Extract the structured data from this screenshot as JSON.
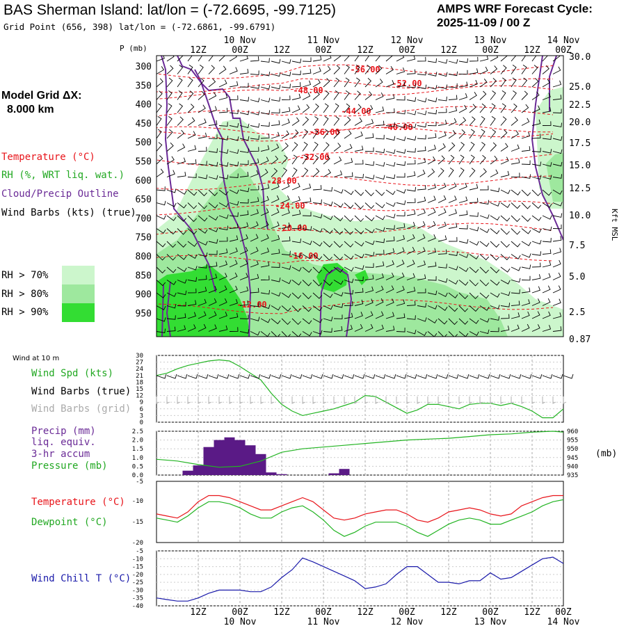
{
  "header": {
    "station_title": "BAS Sherman Island:  lat/lon = (-72.6695, -99.7125)",
    "grid_point": "Grid Point (656, 398) lat/lon = (-72.6861, -99.6791)",
    "cycle_title": "AMPS WRF Forecast Cycle:",
    "cycle_time": "2025-11-09 / 00  Z"
  },
  "left_legend": {
    "model_grid_label": "Model Grid ΔX:",
    "model_grid_value": "8.000 km",
    "temperature": "Temperature (°C)",
    "rh": "RH (%, WRT liq. wat.)",
    "cloud": "Cloud/Precip Outline",
    "wind_barbs": "Wind Barbs (kts) (true)",
    "rh70": "RH > 70%",
    "rh80": "RH > 80%",
    "rh90": "RH > 90%",
    "wind10m": "Wind at 10 m",
    "wind_spd": "Wind Spd (kts)",
    "barbs_true": "Wind Barbs (true)",
    "barbs_grid": "Wind Barbs (grid)",
    "precip1": "Precip (mm)",
    "precip2": "liq. equiv.",
    "precip3": "3-hr accum",
    "pressure": "Pressure (mb)",
    "temp_panel": "Temperature (°C)",
    "dew_panel": "Dewpoint (°C)",
    "windchill": "Wind Chill T (°C)"
  },
  "colors": {
    "temperature": "#e8141a",
    "rh70": "#ccf6cc",
    "rh80": "#9ee89e",
    "rh90": "#33dd33",
    "cloud": "#6a2a96",
    "windspd": "#22b422",
    "barbs_grid": "#aaaaaa",
    "precip": "#5a1a86",
    "pressure": "#22b422",
    "windchill": "#1a1aaa"
  },
  "chart_data": [
    {
      "type": "time-height cross section",
      "title": "Temperature, RH, Cloud/Precip outline and wind barbs",
      "y_left_label": "P (mb)",
      "y_left_ticks": [
        "300",
        "350",
        "400",
        "450",
        "500",
        "550",
        "600",
        "650",
        "700",
        "750",
        "800",
        "850",
        "900",
        "950"
      ],
      "y_right_label": "Kft MSL",
      "y_right_ticks": [
        "30.0",
        "25.0",
        "22.5",
        "20.0",
        "17.5",
        "15.0",
        "12.5",
        "10.0",
        "7.5",
        "5.0",
        "2.5",
        "0.87"
      ],
      "x_top_hours": [
        "12Z",
        "00Z",
        "12Z",
        "00Z",
        "12Z",
        "00Z",
        "12Z",
        "00Z",
        "12Z",
        "00Z"
      ],
      "x_top_days": [
        "10 Nov",
        "11 Nov",
        "12 Nov",
        "13 Nov",
        "14 Nov"
      ],
      "temperature_contours": [
        "-56.00",
        "-52.00",
        "-48.00",
        "-44.00",
        "-40.00",
        "-36.00",
        "-32.00",
        "-28.00",
        "-24.00",
        "-20.00",
        "-16.00",
        "-12.00"
      ]
    },
    {
      "type": "line",
      "title": "Wind at 10 m",
      "series_name": "Wind Spd (kts)",
      "y_ticks": [
        "30",
        "27",
        "24",
        "21",
        "18",
        "15",
        "12",
        "9",
        "6",
        "3",
        "0"
      ],
      "ylim": [
        0,
        30
      ],
      "x_hours": [
        0,
        3,
        6,
        9,
        12,
        15,
        18,
        21,
        24,
        27,
        30,
        33,
        36,
        39,
        42,
        45,
        48,
        51,
        54,
        57,
        60,
        63,
        66,
        69,
        72,
        75,
        78,
        81,
        84,
        87,
        90,
        93,
        96,
        99,
        102,
        105,
        108,
        111,
        114,
        117
      ],
      "values": [
        21,
        22,
        24,
        25.5,
        26.5,
        27.5,
        28,
        27.5,
        25,
        22,
        19,
        13,
        8,
        5,
        3,
        4,
        5,
        6,
        7.5,
        9,
        12,
        11.5,
        9,
        6.5,
        4,
        5.5,
        8,
        8,
        7,
        6,
        8,
        8.5,
        8.5,
        7.5,
        8.5,
        7,
        5,
        2,
        2,
        6
      ]
    },
    {
      "type": "bar+line",
      "title": "Precip / Pressure",
      "precip_name": "Precip (mm)",
      "precip_y_ticks": [
        "2.5",
        "2.0",
        "1.5",
        "1.0",
        "0.5",
        "0.0"
      ],
      "precip_ylim": [
        0,
        2.5
      ],
      "precip_x_hours": [
        9,
        12,
        15,
        18,
        21,
        24,
        27,
        30,
        33,
        36,
        39,
        42,
        45,
        48,
        51,
        54
      ],
      "precip_values": [
        0.25,
        0.55,
        1.6,
        2.0,
        2.15,
        2.0,
        1.7,
        1.2,
        0.15,
        0.05,
        0,
        0,
        0,
        0,
        0.1,
        0.35
      ],
      "pressure_name": "Pressure (mb)",
      "pressure_y_ticks": [
        "960",
        "955",
        "950",
        "945",
        "940",
        "935"
      ],
      "pressure_ylim": [
        935,
        960
      ],
      "pressure_x_hours": [
        0,
        6,
        12,
        18,
        24,
        30,
        36,
        42,
        48,
        54,
        60,
        66,
        72,
        78,
        84,
        90,
        96,
        102,
        108,
        114,
        117
      ],
      "pressure_values": [
        944,
        943,
        941,
        939.5,
        940,
        943,
        948,
        950,
        951,
        952,
        953,
        954,
        955,
        955.5,
        956,
        957,
        958,
        958.5,
        959.5,
        960,
        959.5
      ],
      "pressure_unit": "(mb)"
    },
    {
      "type": "line",
      "title": "Temperature / Dewpoint",
      "y_ticks": [
        "-5",
        "-10",
        "-15",
        "-20"
      ],
      "ylim": [
        -20,
        -5
      ],
      "x_hours": [
        0,
        3,
        6,
        9,
        12,
        15,
        18,
        21,
        24,
        27,
        30,
        33,
        36,
        39,
        42,
        45,
        48,
        51,
        54,
        57,
        60,
        63,
        66,
        69,
        72,
        75,
        78,
        81,
        84,
        87,
        90,
        93,
        96,
        99,
        102,
        105,
        108,
        111,
        114,
        117
      ],
      "series": [
        {
          "name": "Temperature",
          "values": [
            -13,
            -13.5,
            -14,
            -12.5,
            -10,
            -8.5,
            -8.5,
            -9,
            -10,
            -11,
            -12,
            -12,
            -11,
            -10,
            -9,
            -10,
            -12,
            -14,
            -14.5,
            -14,
            -13,
            -12.5,
            -12,
            -12,
            -13,
            -14.5,
            -15,
            -14,
            -12.5,
            -12,
            -11.5,
            -12,
            -13,
            -13.5,
            -13,
            -11,
            -10,
            -9,
            -8.5,
            -8.5
          ]
        },
        {
          "name": "Dewpoint",
          "values": [
            -14,
            -14.5,
            -15,
            -13.5,
            -11.5,
            -10,
            -10,
            -10.5,
            -11.5,
            -13,
            -14,
            -14,
            -12.5,
            -11.5,
            -11,
            -12.5,
            -14.5,
            -17,
            -18.5,
            -17.5,
            -16,
            -15,
            -15,
            -15,
            -16,
            -17.5,
            -18.5,
            -17,
            -15.5,
            -14.5,
            -14,
            -14.5,
            -15.5,
            -15.5,
            -14.5,
            -13.5,
            -12.5,
            -11,
            -10,
            -9.5
          ]
        }
      ]
    },
    {
      "type": "line",
      "title": "Wind Chill T",
      "series_name": "Wind Chill T (°C)",
      "y_ticks": [
        "-5",
        "-10",
        "-15",
        "-20",
        "-25",
        "-30",
        "-35",
        "-40"
      ],
      "ylim": [
        -40,
        -5
      ],
      "x_hours": [
        0,
        3,
        6,
        9,
        12,
        15,
        18,
        21,
        24,
        27,
        30,
        33,
        36,
        39,
        42,
        45,
        48,
        51,
        54,
        57,
        60,
        63,
        66,
        69,
        72,
        75,
        78,
        81,
        84,
        87,
        90,
        93,
        96,
        99,
        102,
        105,
        108,
        111,
        114,
        117
      ],
      "values": [
        -35,
        -36,
        -37,
        -37,
        -35,
        -32,
        -30,
        -30,
        -30,
        -31,
        -31,
        -28,
        -22,
        -17,
        -9.5,
        -12,
        -15,
        -18,
        -21,
        -24,
        -29,
        -28,
        -26,
        -20,
        -15,
        -15,
        -20,
        -25,
        -25,
        -26,
        -24,
        -24,
        -19,
        -23,
        -22,
        -18,
        -14,
        -10,
        -9,
        -13
      ],
      "x_bottom_hours": [
        "12Z",
        "00Z",
        "12Z",
        "00Z",
        "12Z",
        "00Z",
        "12Z",
        "00Z",
        "12Z",
        "00Z"
      ],
      "x_bottom_days": [
        "10 Nov",
        "11 Nov",
        "12 Nov",
        "13 Nov",
        "14 Nov"
      ]
    }
  ]
}
